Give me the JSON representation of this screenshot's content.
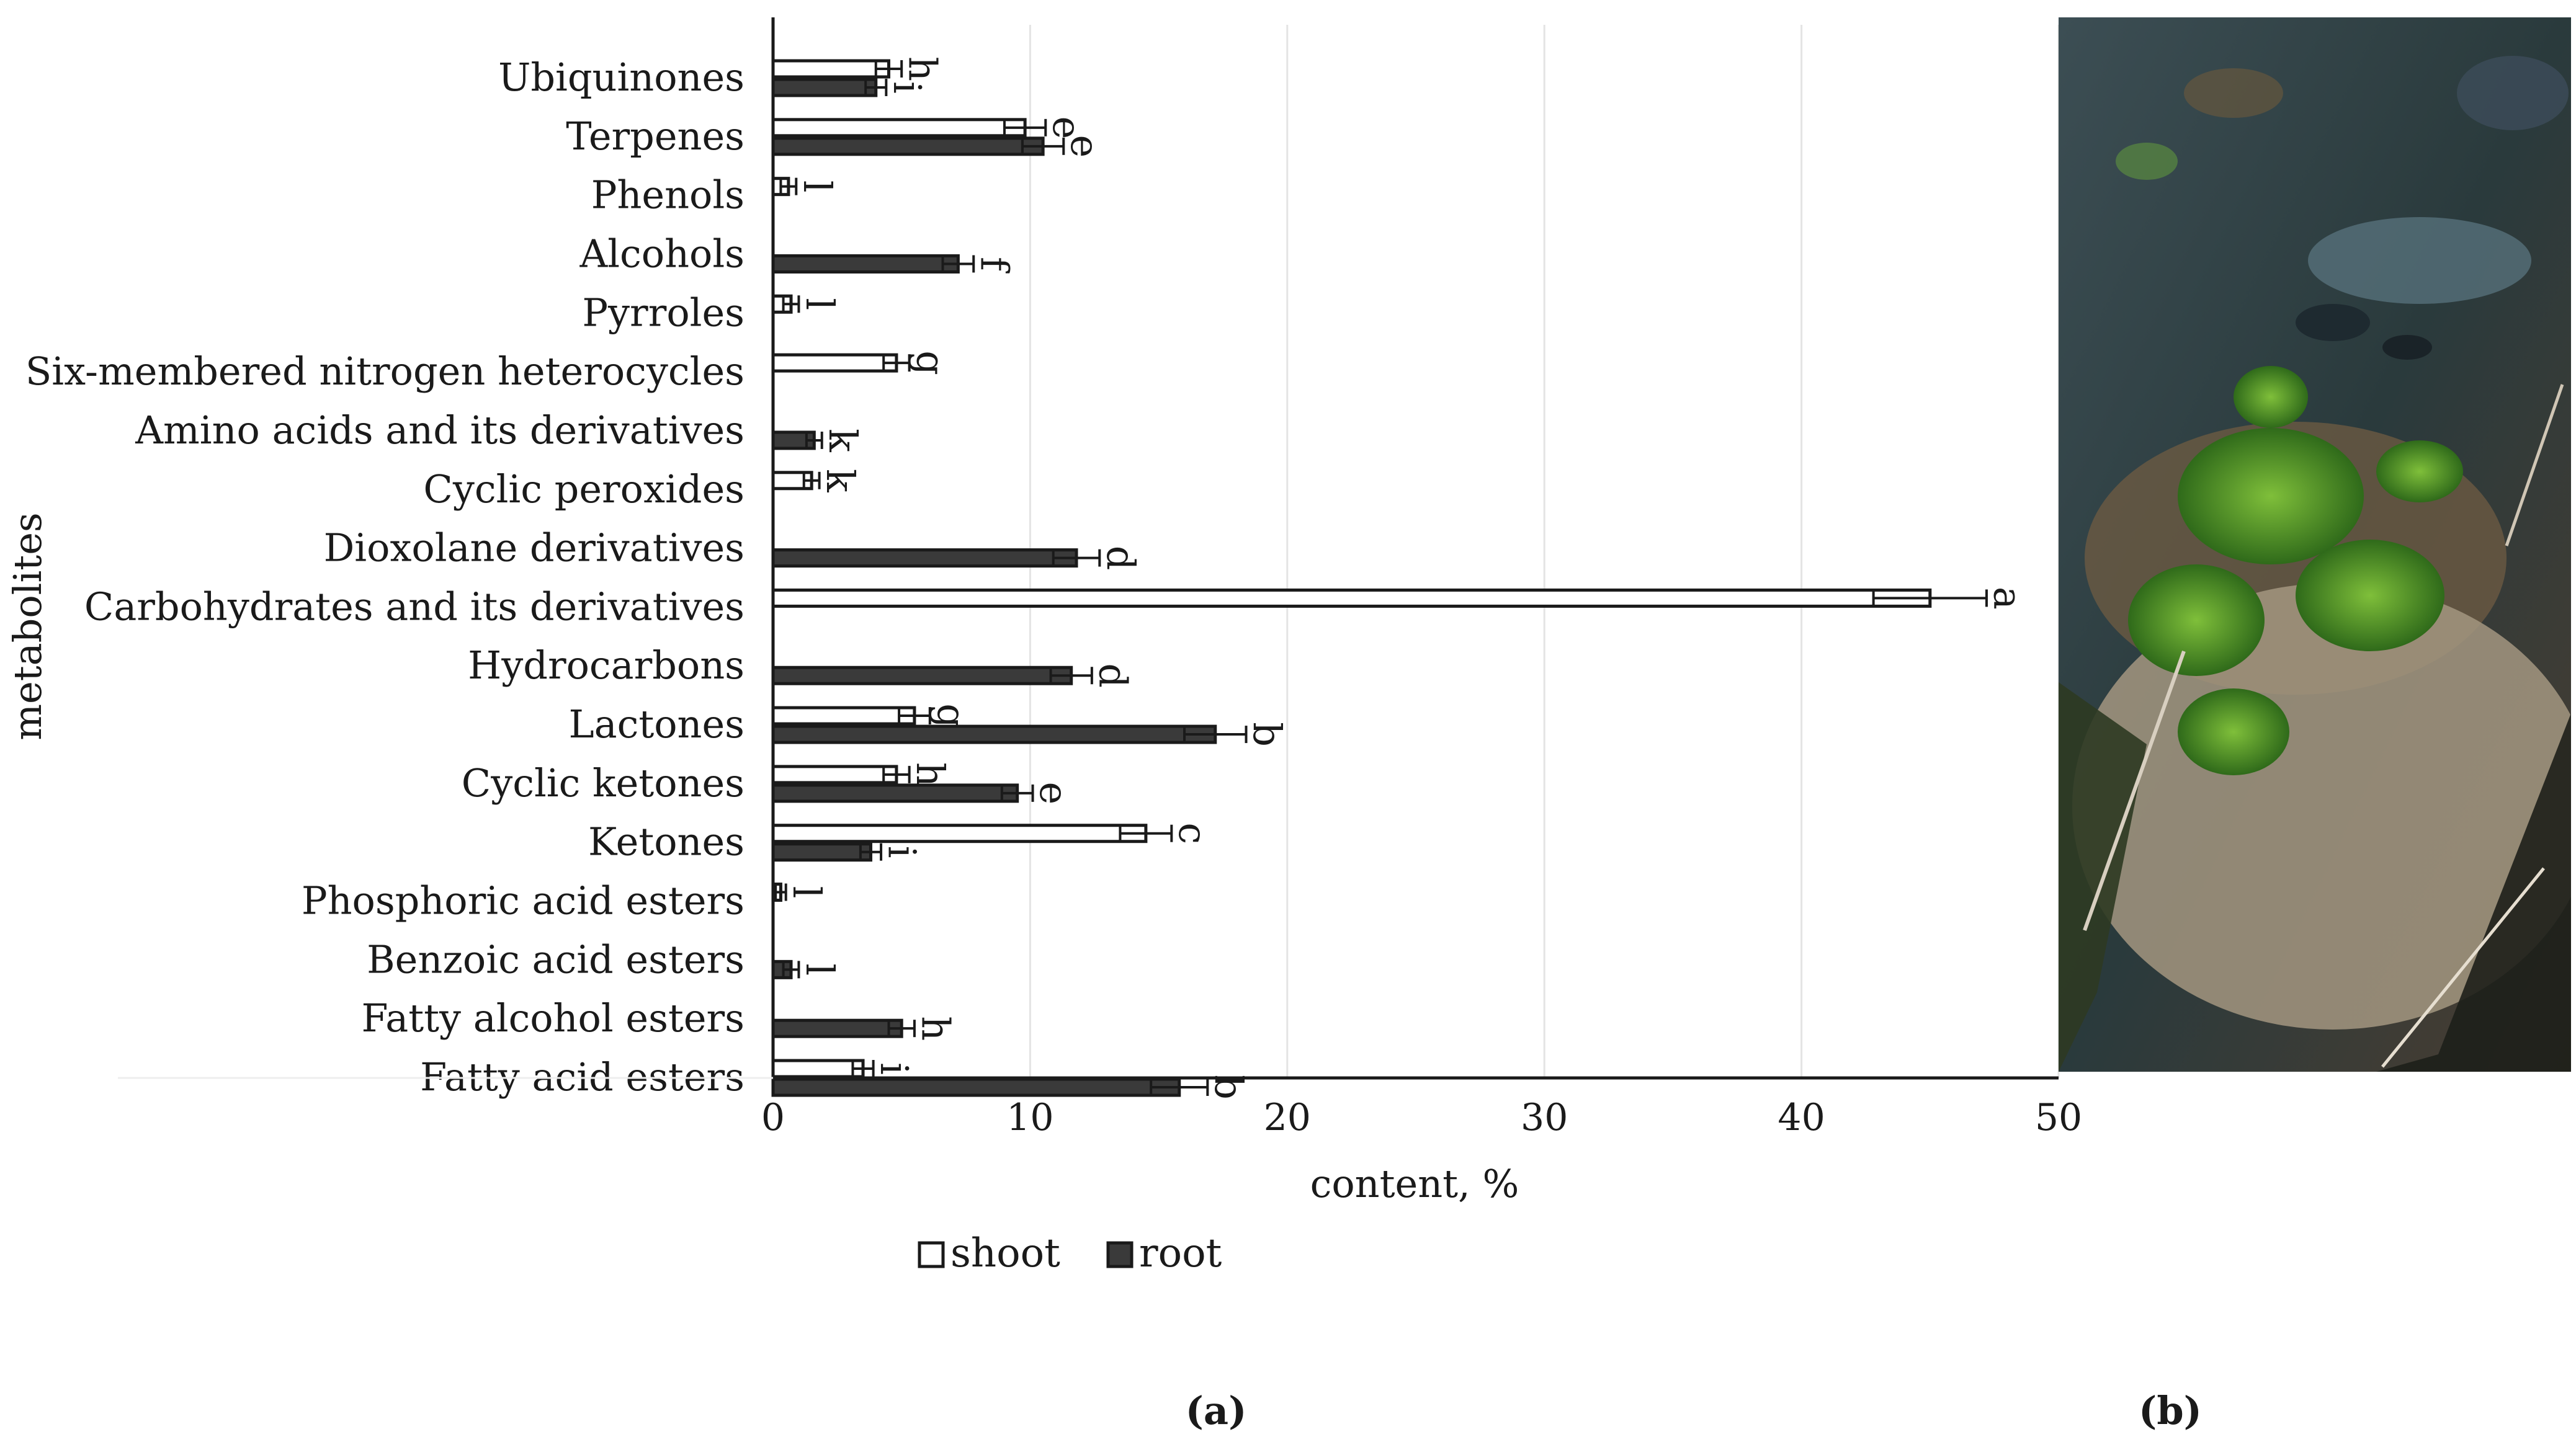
{
  "chart_data": {
    "type": "bar",
    "orientation": "horizontal",
    "ylabel": "metabolites",
    "xlabel": "content, %",
    "xlim": [
      0,
      50
    ],
    "xticks": [
      0,
      10,
      20,
      30,
      40,
      50
    ],
    "grid": "vertical",
    "legend_position": "bottom",
    "categories": [
      "Ubiquinones",
      "Terpenes",
      "Phenols",
      "Alcohols",
      "Pyrroles",
      "Six-membered nitrogen heterocycles",
      "Amino acids and its derivatives",
      "Cyclic peroxides",
      "Dioxolane derivatives",
      "Carbohydrates and its derivatives",
      "Hydrocarbons",
      "Lactones",
      "Cyclic ketones",
      "Ketones",
      "Phosphoric acid esters",
      "Benzoic acid esters",
      "Fatty alcohol esters",
      "Fatty acid esters"
    ],
    "series": [
      {
        "name": "shoot",
        "color": "#ffffff",
        "values": [
          4.5,
          9.8,
          0.6,
          null,
          0.7,
          4.8,
          null,
          1.5,
          null,
          45.0,
          null,
          5.5,
          4.8,
          14.5,
          0.3,
          null,
          null,
          3.5
        ],
        "errors": [
          0.5,
          0.8,
          0.3,
          null,
          0.3,
          0.5,
          null,
          0.3,
          null,
          2.2,
          null,
          0.6,
          0.5,
          1.0,
          0.2,
          null,
          null,
          0.4
        ],
        "letters": [
          "h",
          "e",
          "l",
          null,
          "l",
          "g",
          null,
          "k",
          null,
          "a",
          null,
          "g",
          "h",
          "c",
          "l",
          null,
          null,
          "i"
        ]
      },
      {
        "name": "root",
        "color": "#3a3a3a",
        "values": [
          4.0,
          10.5,
          null,
          7.2,
          null,
          null,
          1.6,
          null,
          11.8,
          null,
          11.6,
          17.2,
          9.5,
          3.8,
          null,
          0.7,
          5.0,
          15.8
        ],
        "errors": [
          0.4,
          0.8,
          null,
          0.6,
          null,
          null,
          0.3,
          null,
          0.9,
          null,
          0.8,
          1.2,
          0.6,
          0.4,
          null,
          0.3,
          0.5,
          1.1
        ],
        "letters": [
          "i",
          "e",
          null,
          "f",
          null,
          null,
          "k",
          null,
          "d",
          null,
          "d",
          "b",
          "e",
          "i",
          null,
          "l",
          "h",
          "b"
        ]
      }
    ]
  },
  "panel_labels": {
    "a": "(a)",
    "b": "(b)"
  },
  "photo_description_icon": "plant-photo-icon"
}
